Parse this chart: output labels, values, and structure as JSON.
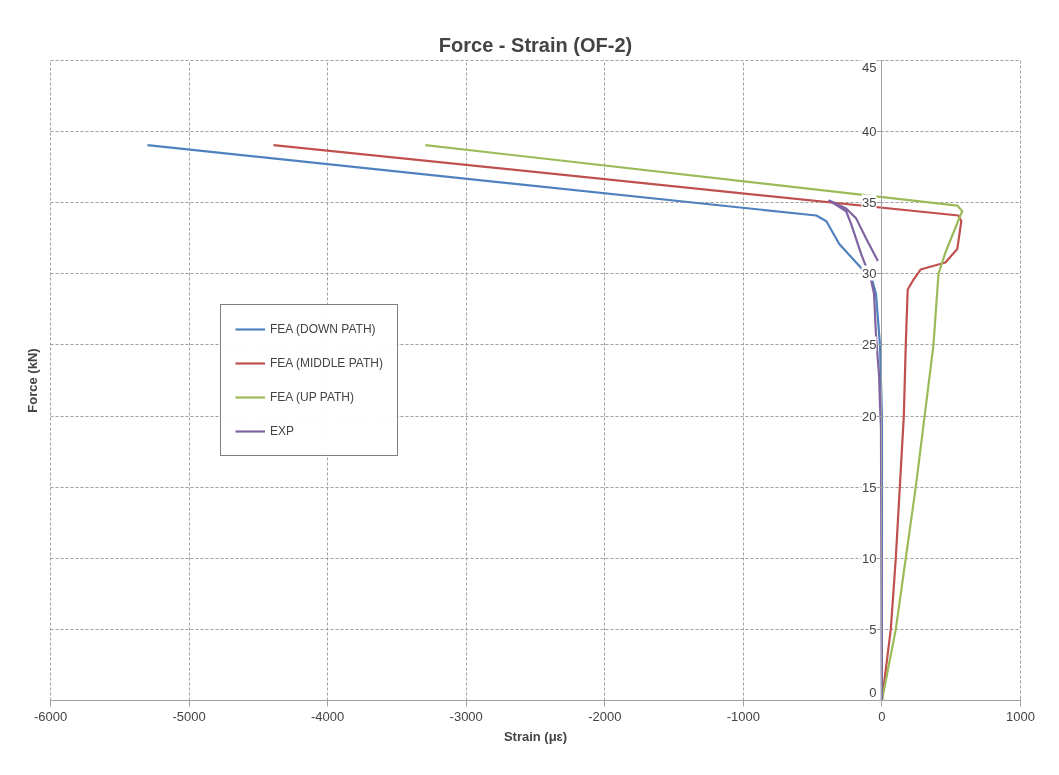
{
  "chart_data": {
    "type": "line",
    "title": "Force - Strain (OF-2)",
    "xlabel": "Strain (με)",
    "ylabel": "Force (kN)",
    "xlim": [
      -6000,
      1000
    ],
    "xticks": [
      -6000,
      -5000,
      -4000,
      -3000,
      -2000,
      -1000,
      0,
      1000
    ],
    "ylim": [
      0,
      45
    ],
    "yticks": [
      0,
      5,
      10,
      15,
      20,
      25,
      30,
      35,
      40,
      45
    ],
    "grid": true,
    "legend": "left",
    "line_style": "solid",
    "marker": "none",
    "series": [
      {
        "name": "FEA (DOWN PATH)",
        "color": "#4f81bd",
        "x": [
          0,
          0,
          -14,
          -43,
          -72,
          -186,
          -308,
          -401,
          -473,
          -5300
        ],
        "values": [
          0,
          20,
          25,
          28.6,
          29.6,
          30.8,
          32.1,
          33.7,
          34.1,
          39.05
        ]
      },
      {
        "name": "FEA (MIDDLE PATH)",
        "color": "#c0504d",
        "x": [
          0,
          64,
          100,
          129,
          158,
          172,
          186,
          222,
          279,
          458,
          544,
          573,
          552,
          -4391
        ],
        "values": [
          0,
          5,
          10,
          15,
          20,
          25,
          28.9,
          29.5,
          30.3,
          30.8,
          31.75,
          33.7,
          34.1,
          39.05
        ]
      },
      {
        "name": "FEA (UP PATH)",
        "color": "#9bbb59",
        "x": [
          0,
          100,
          172,
          244,
          308,
          372,
          408,
          458,
          566,
          580,
          544,
          -3295
        ],
        "values": [
          0,
          5,
          10,
          15,
          20,
          25,
          30,
          31.5,
          34.1,
          34.4,
          34.8,
          39.05
        ]
      },
      {
        "name": "EXP",
        "color": "#8064a2",
        "x": [
          0,
          -7,
          -14,
          -21,
          -43,
          -57,
          -79,
          -150,
          -222,
          -258,
          -380,
          -258,
          -186,
          -115,
          -29
        ],
        "values": [
          0,
          19.2,
          20.8,
          22.9,
          25.7,
          28.6,
          29.6,
          31.4,
          33.5,
          34.4,
          35.15,
          34.6,
          33.9,
          32.5,
          30.9
        ]
      }
    ]
  }
}
